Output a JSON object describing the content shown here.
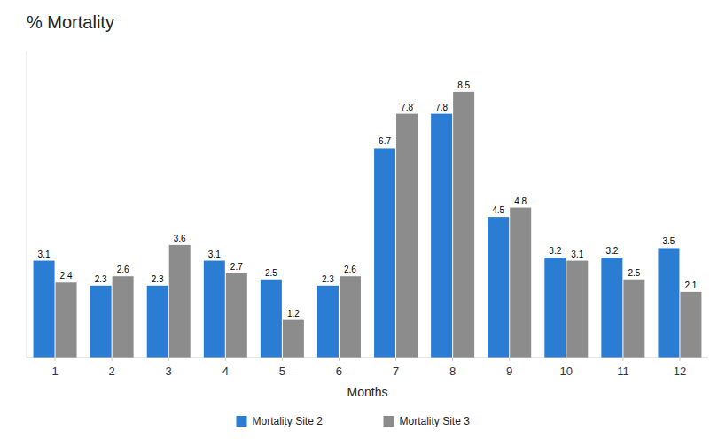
{
  "chart_data": {
    "type": "bar",
    "title": "% Mortality",
    "x_label": "Months",
    "categories": [
      "1",
      "2",
      "3",
      "4",
      "5",
      "6",
      "7",
      "8",
      "9",
      "10",
      "11",
      "12"
    ],
    "series": [
      {
        "name": "Mortality Site 2",
        "color": "#2B7CD3",
        "values": [
          3.1,
          2.3,
          2.3,
          3.1,
          2.5,
          2.3,
          6.7,
          7.8,
          4.5,
          3.2,
          3.2,
          3.5
        ]
      },
      {
        "name": "Mortality Site 3",
        "color": "#8C8C8C",
        "values": [
          2.4,
          2.6,
          3.6,
          2.7,
          1.2,
          2.6,
          7.8,
          8.5,
          4.8,
          3.1,
          2.5,
          2.1
        ]
      }
    ],
    "ylim": [
      0,
      9.8
    ],
    "grid": false,
    "legend": "bottom",
    "data_labels": true,
    "tick_labels": "x"
  }
}
